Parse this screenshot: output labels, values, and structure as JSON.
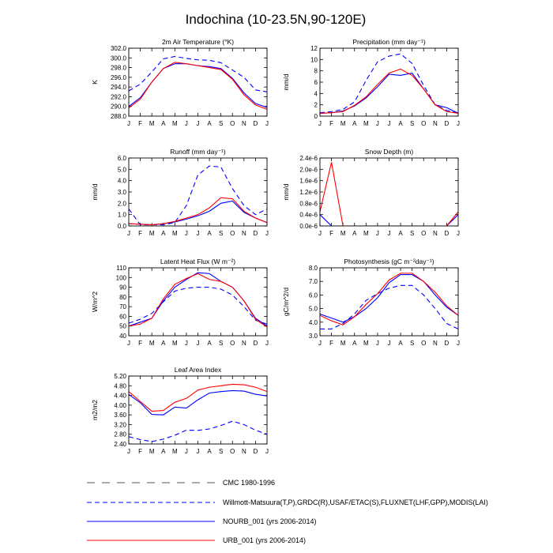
{
  "title": "Indochina (10-23.5N,90-120E)",
  "months": [
    "J",
    "F",
    "M",
    "A",
    "M",
    "J",
    "J",
    "A",
    "S",
    "O",
    "N",
    "D",
    "J"
  ],
  "colors": {
    "nourb": "#0000ff",
    "urb": "#ff0000",
    "obs": "#0000ff",
    "axis": "#000000"
  },
  "legend": [
    {
      "label": "CMC 1980-1996",
      "style": "dashed-wide"
    },
    {
      "label": "Willmott-Matsuura(T,P),GRDC(R),USAF/ETAC(S),FLUXNET(LHF,GPP),MODIS(LAI)",
      "style": "dashed"
    },
    {
      "label": "NOURB_001 (yrs 2006-2014)",
      "style": "solid-blue"
    },
    {
      "label": "URB_001 (yrs 2006-2014)",
      "style": "solid-red"
    }
  ],
  "chart_data": [
    {
      "type": "line",
      "title": "2m Air Temperature (°K)",
      "ylabel": "K",
      "ylim": [
        288,
        302
      ],
      "yticks": [
        "288.0",
        "290.0",
        "292.0",
        "294.0",
        "296.0",
        "298.0",
        "300.0",
        "302.0"
      ],
      "series": [
        {
          "name": "NOURB_001 (yrs 2006-2014)",
          "style": "solid-blue",
          "values": [
            290.0,
            291.8,
            295.0,
            297.8,
            298.8,
            298.8,
            298.4,
            298.2,
            297.8,
            295.8,
            292.8,
            290.6,
            289.8
          ]
        },
        {
          "name": "URB_001 (yrs 2006-2014)",
          "style": "solid-red",
          "values": [
            289.7,
            291.5,
            295.0,
            297.8,
            299.1,
            298.8,
            298.4,
            298.0,
            297.6,
            295.6,
            292.4,
            290.3,
            289.4
          ]
        },
        {
          "name": "Willmott-Matsuura(T,P),GRDC(R),USAF/ETAC(S),FLUXNET(LHF,GPP),MODIS(LAI)",
          "style": "dashed",
          "values": [
            293.2,
            294.6,
            297.1,
            299.8,
            300.3,
            299.9,
            299.6,
            299.5,
            299.0,
            297.5,
            296.0,
            293.4,
            293.0
          ]
        }
      ]
    },
    {
      "type": "line",
      "title": "Precipitation (mm day⁻¹)",
      "ylabel": "mm/d",
      "ylim": [
        0,
        12
      ],
      "yticks": [
        "0",
        "2",
        "4",
        "6",
        "8",
        "10",
        "12"
      ],
      "series": [
        {
          "name": "NOURB_001 (yrs 2006-2014)",
          "style": "solid-blue",
          "values": [
            0.5,
            0.6,
            0.9,
            1.8,
            3.2,
            5.2,
            7.4,
            7.2,
            7.6,
            4.8,
            2.0,
            1.5,
            0.5
          ]
        },
        {
          "name": "URB_001 (yrs 2006-2014)",
          "style": "solid-red",
          "values": [
            0.5,
            0.6,
            0.8,
            1.9,
            3.4,
            5.6,
            7.6,
            8.3,
            7.2,
            4.8,
            2.0,
            0.8,
            0.5
          ]
        },
        {
          "name": "Willmott-Matsuura(T,P),GRDC(R),USAF/ETAC(S),FLUXNET(LHF,GPP),MODIS(LAI)",
          "style": "dashed",
          "values": [
            0.6,
            0.8,
            1.2,
            2.5,
            6.3,
            9.6,
            10.6,
            11.0,
            9.3,
            5.4,
            2.0,
            1.0,
            0.6
          ]
        }
      ]
    },
    {
      "type": "line",
      "title": "Runoff (mm day⁻¹)",
      "ylabel": "mm/d",
      "ylim": [
        0,
        6
      ],
      "yticks": [
        "0.0",
        "1.0",
        "2.0",
        "3.0",
        "4.0",
        "5.0",
        "6.0"
      ],
      "series": [
        {
          "name": "NOURB_001 (yrs 2006-2014)",
          "style": "solid-blue",
          "values": [
            0.2,
            0.15,
            0.1,
            0.2,
            0.35,
            0.6,
            0.9,
            1.3,
            2.0,
            2.2,
            1.2,
            0.7,
            0.3
          ]
        },
        {
          "name": "URB_001 (yrs 2006-2014)",
          "style": "solid-red",
          "values": [
            0.2,
            0.15,
            0.1,
            0.2,
            0.4,
            0.7,
            1.0,
            1.6,
            2.5,
            2.4,
            1.3,
            0.7,
            0.3
          ]
        },
        {
          "name": "Willmott-Matsuura(T,P),GRDC(R),USAF/ETAC(S),FLUXNET(LHF,GPP),MODIS(LAI)",
          "style": "dashed",
          "values": [
            1.5,
            0.1,
            0.1,
            0.1,
            0.3,
            1.8,
            4.5,
            5.3,
            5.2,
            3.3,
            1.8,
            1.0,
            1.5
          ]
        }
      ]
    },
    {
      "type": "line",
      "title": "Snow Depth (m)",
      "ylabel": "mm/d",
      "ylim": [
        0,
        2.4
      ],
      "yticks": [
        "0.0e-6",
        "0.4e-6",
        "0.8e-6",
        "1.2e-6",
        "1.6e-6",
        "2.0e-6",
        "2.4e-6"
      ],
      "series": [
        {
          "name": "NOURB_001 (yrs 2006-2014)",
          "style": "solid-blue",
          "values": [
            0.4,
            0.0,
            0.0,
            0.0,
            0.0,
            0.0,
            0.0,
            0.0,
            0.0,
            0.0,
            0.0,
            0.0,
            0.4
          ]
        },
        {
          "name": "URB_001 (yrs 2006-2014)",
          "style": "solid-red",
          "values": [
            0.5,
            2.25,
            0.0,
            0.0,
            0.0,
            0.0,
            0.0,
            0.0,
            0.0,
            0.0,
            0.0,
            0.0,
            0.5
          ]
        }
      ]
    },
    {
      "type": "line",
      "title": "Latent Heat Flux (W m⁻²)",
      "ylabel": "W/m^2",
      "ylim": [
        40,
        110
      ],
      "yticks": [
        "40",
        "50",
        "60",
        "70",
        "80",
        "90",
        "100",
        "110"
      ],
      "series": [
        {
          "name": "NOURB_001 (yrs 2006-2014)",
          "style": "solid-blue",
          "values": [
            50,
            54,
            58,
            76,
            90,
            98,
            105,
            104,
            96,
            90,
            76,
            58,
            50
          ]
        },
        {
          "name": "URB_001 (yrs 2006-2014)",
          "style": "solid-red",
          "values": [
            50,
            52,
            58,
            78,
            93,
            99,
            104,
            98,
            96,
            90,
            76,
            57,
            49
          ]
        },
        {
          "name": "Willmott-Matsuura(T,P),GRDC(R),USAF/ETAC(S),FLUXNET(LHF,GPP),MODIS(LAI)",
          "style": "dashed",
          "values": [
            53,
            57,
            63,
            75,
            86,
            89,
            90,
            90,
            88,
            82,
            70,
            56,
            52
          ]
        }
      ]
    },
    {
      "type": "line",
      "title": "Photosynthesis (gC m⁻²day⁻¹)",
      "ylabel": "gC/m^2/d",
      "ylim": [
        3,
        8
      ],
      "yticks": [
        "3.0",
        "4.0",
        "5.0",
        "6.0",
        "7.0",
        "8.0"
      ],
      "series": [
        {
          "name": "NOURB_001 (yrs 2006-2014)",
          "style": "solid-blue",
          "values": [
            4.6,
            4.3,
            4.0,
            4.4,
            5.0,
            5.8,
            6.9,
            7.5,
            7.5,
            7.0,
            6.0,
            5.1,
            4.5
          ]
        },
        {
          "name": "URB_001 (yrs 2006-2014)",
          "style": "solid-red",
          "values": [
            4.5,
            4.1,
            3.8,
            4.4,
            5.3,
            6.1,
            7.1,
            7.6,
            7.6,
            7.0,
            6.2,
            5.2,
            4.5
          ]
        },
        {
          "name": "Willmott-Matsuura(T,P),GRDC(R),USAF/ETAC(S),FLUXNET(LHF,GPP),MODIS(LAI)",
          "style": "dashed",
          "values": [
            3.5,
            3.5,
            3.9,
            4.6,
            5.6,
            6.1,
            6.5,
            6.7,
            6.7,
            6.0,
            5.0,
            3.9,
            3.5
          ]
        }
      ]
    },
    {
      "type": "line",
      "title": "Leaf Area Index",
      "ylabel": "m2/m2",
      "ylim": [
        2.4,
        5.2
      ],
      "yticks": [
        "2.40",
        "2.80",
        "3.20",
        "3.60",
        "4.00",
        "4.40",
        "4.80",
        "5.20"
      ],
      "series": [
        {
          "name": "NOURB_001 (yrs 2006-2014)",
          "style": "solid-blue",
          "values": [
            4.44,
            4.1,
            3.62,
            3.6,
            3.92,
            3.88,
            4.22,
            4.5,
            4.56,
            4.6,
            4.58,
            4.45,
            4.38
          ]
        },
        {
          "name": "URB_001 (yrs 2006-2014)",
          "style": "solid-red",
          "values": [
            4.56,
            4.15,
            3.75,
            3.78,
            4.12,
            4.28,
            4.62,
            4.74,
            4.8,
            4.86,
            4.84,
            4.74,
            4.56
          ]
        },
        {
          "name": "Willmott-Matsuura(T,P),GRDC(R),USAF/ETAC(S),FLUXNET(LHF,GPP),MODIS(LAI)",
          "style": "dashed",
          "values": [
            2.7,
            2.58,
            2.5,
            2.6,
            2.76,
            2.97,
            2.96,
            3.02,
            3.16,
            3.34,
            3.2,
            2.97,
            2.8
          ]
        }
      ]
    }
  ]
}
